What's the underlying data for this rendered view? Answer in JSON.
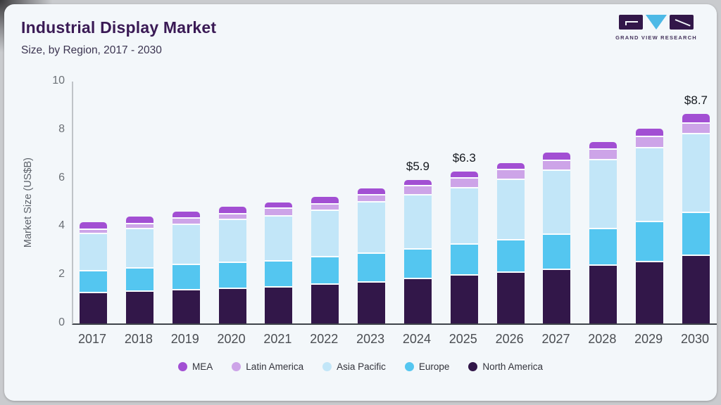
{
  "header": {
    "title": "Industrial Display Market",
    "subtitle": "Size, by Region, 2017 - 2030",
    "logo_caption": "GRAND VIEW RESEARCH"
  },
  "colors": {
    "card_background": "#f3f7fa",
    "title_text": "#3a1a55",
    "logo_dark_purple": "#321749",
    "logo_light_blue": "#4db9e6"
  },
  "chart_data": {
    "type": "bar",
    "stacked": true,
    "title": "Industrial Display Market",
    "subtitle": "Size, by Region, 2017 - 2030",
    "xlabel": "",
    "ylabel": "Market Size (US$B)",
    "ylim": [
      0,
      10
    ],
    "yticks": [
      0,
      2,
      4,
      6,
      8,
      10
    ],
    "grid": false,
    "legend_position": "bottom",
    "categories": [
      "2017",
      "2018",
      "2019",
      "2020",
      "2021",
      "2022",
      "2023",
      "2024",
      "2025",
      "2026",
      "2027",
      "2028",
      "2029",
      "2030"
    ],
    "series": [
      {
        "name": "MEA",
        "color": "#a24fd3",
        "values": [
          0.3,
          0.3,
          0.3,
          0.31,
          0.26,
          0.31,
          0.29,
          0.26,
          0.29,
          0.29,
          0.35,
          0.33,
          0.35,
          0.41
        ]
      },
      {
        "name": "Latin America",
        "color": "#cda4e8",
        "values": [
          0.18,
          0.21,
          0.26,
          0.26,
          0.32,
          0.27,
          0.29,
          0.38,
          0.41,
          0.41,
          0.41,
          0.41,
          0.47,
          0.44
        ]
      },
      {
        "name": "Asia Pacific",
        "color": "#c2e6f8",
        "values": [
          1.54,
          1.62,
          1.66,
          1.75,
          1.86,
          1.92,
          2.1,
          2.22,
          2.3,
          2.48,
          2.63,
          2.85,
          3.03,
          3.23
        ]
      },
      {
        "name": "Europe",
        "color": "#54c6f0",
        "values": [
          0.91,
          0.97,
          1.05,
          1.08,
          1.08,
          1.14,
          1.2,
          1.22,
          1.29,
          1.34,
          1.45,
          1.52,
          1.66,
          1.78
        ]
      },
      {
        "name": "North America",
        "color": "#321749",
        "values": [
          1.25,
          1.31,
          1.37,
          1.43,
          1.49,
          1.6,
          1.69,
          1.84,
          1.98,
          2.1,
          2.22,
          2.39,
          2.54,
          2.8
        ]
      }
    ],
    "annotations": [
      {
        "category": "2024",
        "label": "$5.9"
      },
      {
        "category": "2025",
        "label": "$6.3"
      },
      {
        "category": "2030",
        "label": "$8.7"
      }
    ]
  }
}
